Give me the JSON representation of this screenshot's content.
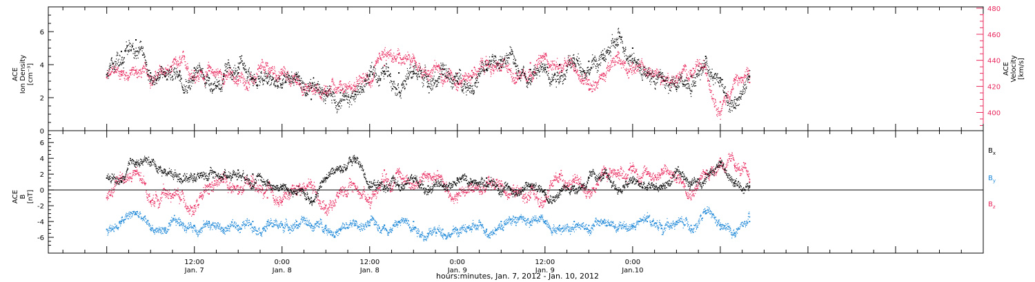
{
  "colors": {
    "black": "#000000",
    "pink": "#e8245a",
    "blue": "#1e88d8"
  },
  "chart_data": [
    {
      "type": "scatter",
      "panel": "top",
      "ylabel_lines": [
        "ACE",
        "Ion Density",
        "[cm⁻³]"
      ],
      "ylim": [
        0,
        7.5
      ],
      "yticks": [
        0,
        2,
        4,
        6
      ],
      "ylabel_right_lines": [
        "ACE",
        "Velocity",
        "[km/s]"
      ],
      "ylim_right": [
        386,
        481
      ],
      "yticks_right": [
        400,
        420,
        440,
        460,
        480
      ],
      "series": [
        {
          "axis": "left",
          "color": "black",
          "x": [
            0,
            2,
            4,
            6,
            8,
            10,
            12,
            14,
            16,
            18,
            20,
            22,
            24,
            26,
            28,
            30,
            32,
            34,
            36,
            38,
            40,
            42,
            44,
            46,
            48,
            50,
            52,
            54,
            56,
            58,
            60,
            62,
            64,
            66,
            68,
            70,
            72,
            74,
            76,
            78,
            80,
            82,
            84,
            86,
            88
          ],
          "values": [
            3.4,
            4.8,
            5.5,
            3.5,
            3.3,
            3.6,
            3.8,
            3.2,
            3.3,
            3.5,
            3.2,
            2.9,
            2.6,
            3.4,
            1.9,
            2.4,
            2.3,
            2.2,
            3.3,
            3.6,
            3.5,
            3.6,
            3.3,
            3.4,
            3.0,
            3.2,
            3.7,
            4.3,
            3.9,
            3.7,
            3.7,
            4.0,
            4.1,
            4.2,
            4.4,
            5.2,
            5.0,
            3.5,
            3.2,
            2.5,
            3.3,
            4.5,
            3.2,
            1.4,
            3.3
          ]
        },
        {
          "axis": "right",
          "color": "pink",
          "x": [
            0,
            2,
            4,
            6,
            8,
            10,
            12,
            14,
            16,
            18,
            20,
            22,
            24,
            26,
            28,
            30,
            32,
            34,
            36,
            38,
            40,
            42,
            44,
            46,
            48,
            50,
            52,
            54,
            56,
            58,
            60,
            62,
            64,
            66,
            68,
            70,
            72,
            74,
            76,
            78,
            80,
            82,
            84,
            86,
            88
          ],
          "values": [
            427,
            431,
            432,
            428,
            430,
            432,
            432,
            432,
            429,
            425,
            426,
            428,
            430,
            423,
            419,
            420,
            424,
            420,
            423,
            436,
            438,
            435,
            432,
            433,
            430,
            432,
            436,
            432,
            430,
            438,
            441,
            436,
            432,
            425,
            430,
            438,
            438,
            430,
            427,
            428,
            432,
            430,
            408,
            425,
            423
          ]
        }
      ]
    },
    {
      "type": "scatter",
      "panel": "bottom",
      "ylabel_lines": [
        "ACE",
        "B",
        "[nT]"
      ],
      "ylim": [
        -8,
        7.5
      ],
      "yticks": [
        -6,
        -4,
        -2,
        0,
        2,
        4,
        6
      ],
      "legend_position": "right",
      "series": [
        {
          "name": "Bx",
          "name_main": "B",
          "name_sub": "x",
          "color": "black",
          "x": [
            0,
            2,
            4,
            6,
            8,
            10,
            12,
            14,
            16,
            18,
            20,
            22,
            24,
            26,
            28,
            30,
            32,
            34,
            36,
            38,
            40,
            42,
            44,
            46,
            48,
            50,
            52,
            54,
            56,
            58,
            60,
            62,
            64,
            66,
            68,
            70,
            72,
            74,
            76,
            78,
            80,
            82,
            84,
            86,
            88
          ],
          "values": [
            1.5,
            1.0,
            3.5,
            3.5,
            2.5,
            2.0,
            2.0,
            2.0,
            2.0,
            2.5,
            2.0,
            1.0,
            0.5,
            -0.5,
            -1.0,
            1.5,
            3.0,
            4.0,
            1.0,
            0.5,
            0.5,
            1.0,
            0.5,
            0.5,
            1.5,
            1.0,
            1.5,
            0.5,
            0.0,
            0.5,
            0.0,
            0.0,
            0.5,
            1.5,
            1.5,
            0.0,
            1.0,
            0.0,
            0.5,
            1.5,
            1.0,
            2.0,
            3.5,
            0.5,
            0.5
          ]
        },
        {
          "name": "By",
          "name_main": "B",
          "name_sub": "y",
          "color": "blue",
          "x": [
            0,
            2,
            4,
            6,
            8,
            10,
            12,
            14,
            16,
            18,
            20,
            22,
            24,
            26,
            28,
            30,
            32,
            34,
            36,
            38,
            40,
            42,
            44,
            46,
            48,
            50,
            52,
            54,
            56,
            58,
            60,
            62,
            64,
            66,
            68,
            70,
            72,
            74,
            76,
            78,
            80,
            82,
            84,
            86,
            88
          ],
          "values": [
            -5.0,
            -4.0,
            -3.0,
            -5.0,
            -5.0,
            -4.5,
            -4.5,
            -4.0,
            -5.0,
            -4.5,
            -4.0,
            -4.0,
            -4.5,
            -4.0,
            -4.5,
            -4.5,
            -5.0,
            -4.5,
            -4.5,
            -4.5,
            -4.0,
            -4.0,
            -5.5,
            -5.0,
            -5.0,
            -5.0,
            -5.0,
            -4.0,
            -3.5,
            -4.0,
            -4.0,
            -4.5,
            -4.0,
            -4.5,
            -4.0,
            -5.0,
            -4.5,
            -4.0,
            -4.5,
            -4.0,
            -4.5,
            -3.0,
            -5.0,
            -5.5,
            -4.0
          ]
        },
        {
          "name": "Bz",
          "name_main": "B",
          "name_sub": "z",
          "color": "pink",
          "x": [
            0,
            2,
            4,
            6,
            8,
            10,
            12,
            14,
            16,
            18,
            20,
            22,
            24,
            26,
            28,
            30,
            32,
            34,
            36,
            38,
            40,
            42,
            44,
            46,
            48,
            50,
            52,
            54,
            56,
            58,
            60,
            62,
            64,
            66,
            68,
            70,
            72,
            74,
            76,
            78,
            80,
            82,
            84,
            86,
            88
          ],
          "values": [
            -1.0,
            1.5,
            2.0,
            -1.5,
            0.0,
            -1.0,
            -2.0,
            -0.5,
            1.0,
            -0.5,
            0.5,
            -1.0,
            -1.5,
            0.5,
            1.0,
            -2.0,
            0.0,
            0.5,
            -1.0,
            2.5,
            2.0,
            1.0,
            2.0,
            0.5,
            -0.5,
            0.0,
            1.0,
            0.5,
            0.0,
            -1.0,
            -1.5,
            2.0,
            1.0,
            0.0,
            2.0,
            2.5,
            3.0,
            2.0,
            2.5,
            1.5,
            1.0,
            2.0,
            4.0,
            3.0,
            1.0
          ]
        }
      ]
    }
  ],
  "x_axis": {
    "xlim": [
      -8,
      120
    ],
    "ticks": [
      {
        "x": 12,
        "time": "12:00",
        "date": "Jan. 7"
      },
      {
        "x": 24,
        "time": "0:00",
        "date": "Jan. 8"
      },
      {
        "x": 36,
        "time": "12:00",
        "date": "Jan. 8"
      },
      {
        "x": 48,
        "time": "0:00",
        "date": "Jan. 9"
      },
      {
        "x": 60,
        "time": "12:00",
        "date": "Jan. 9"
      },
      {
        "x": 72,
        "time": "0:00",
        "date": "Jan.10"
      }
    ],
    "xlabel": "hours:minutes, Jan.  7, 2012 - Jan. 10, 2012"
  }
}
